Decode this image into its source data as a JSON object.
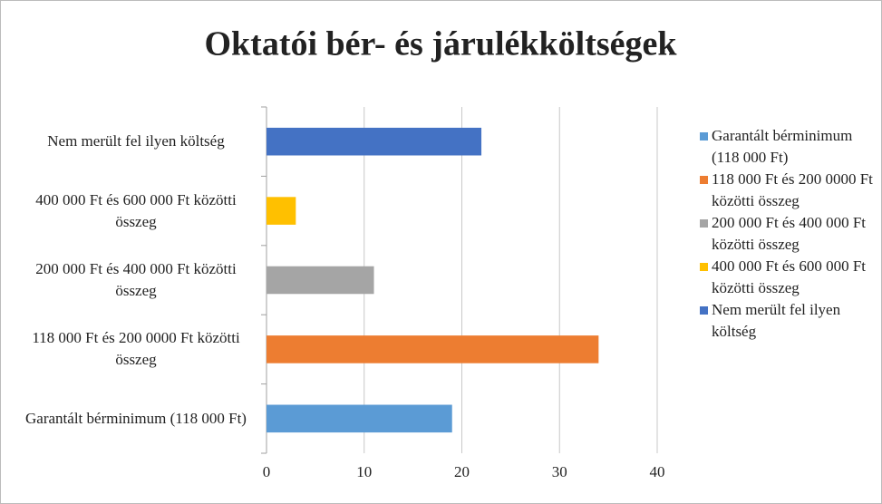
{
  "chart_data": {
    "type": "bar",
    "orientation": "horizontal",
    "title": "Oktatói bér- és járulékköltségek",
    "categories": [
      "Garantált bérminimum (118 000 Ft)",
      "118 000 Ft és 200 0000 Ft közötti összeg",
      "200 000 Ft és 400 000 Ft közötti összeg",
      "400 000 Ft és  600 000 Ft közötti összeg",
      "Nem merült fel ilyen költség"
    ],
    "values": [
      19,
      34,
      11,
      3,
      22
    ],
    "colors": [
      "#5b9bd5",
      "#ed7d31",
      "#a5a5a5",
      "#ffc000",
      "#4472c4"
    ],
    "xlim": [
      0,
      40
    ],
    "xticks": [
      0,
      10,
      20,
      30,
      40
    ],
    "grid": true,
    "legend": "right"
  }
}
